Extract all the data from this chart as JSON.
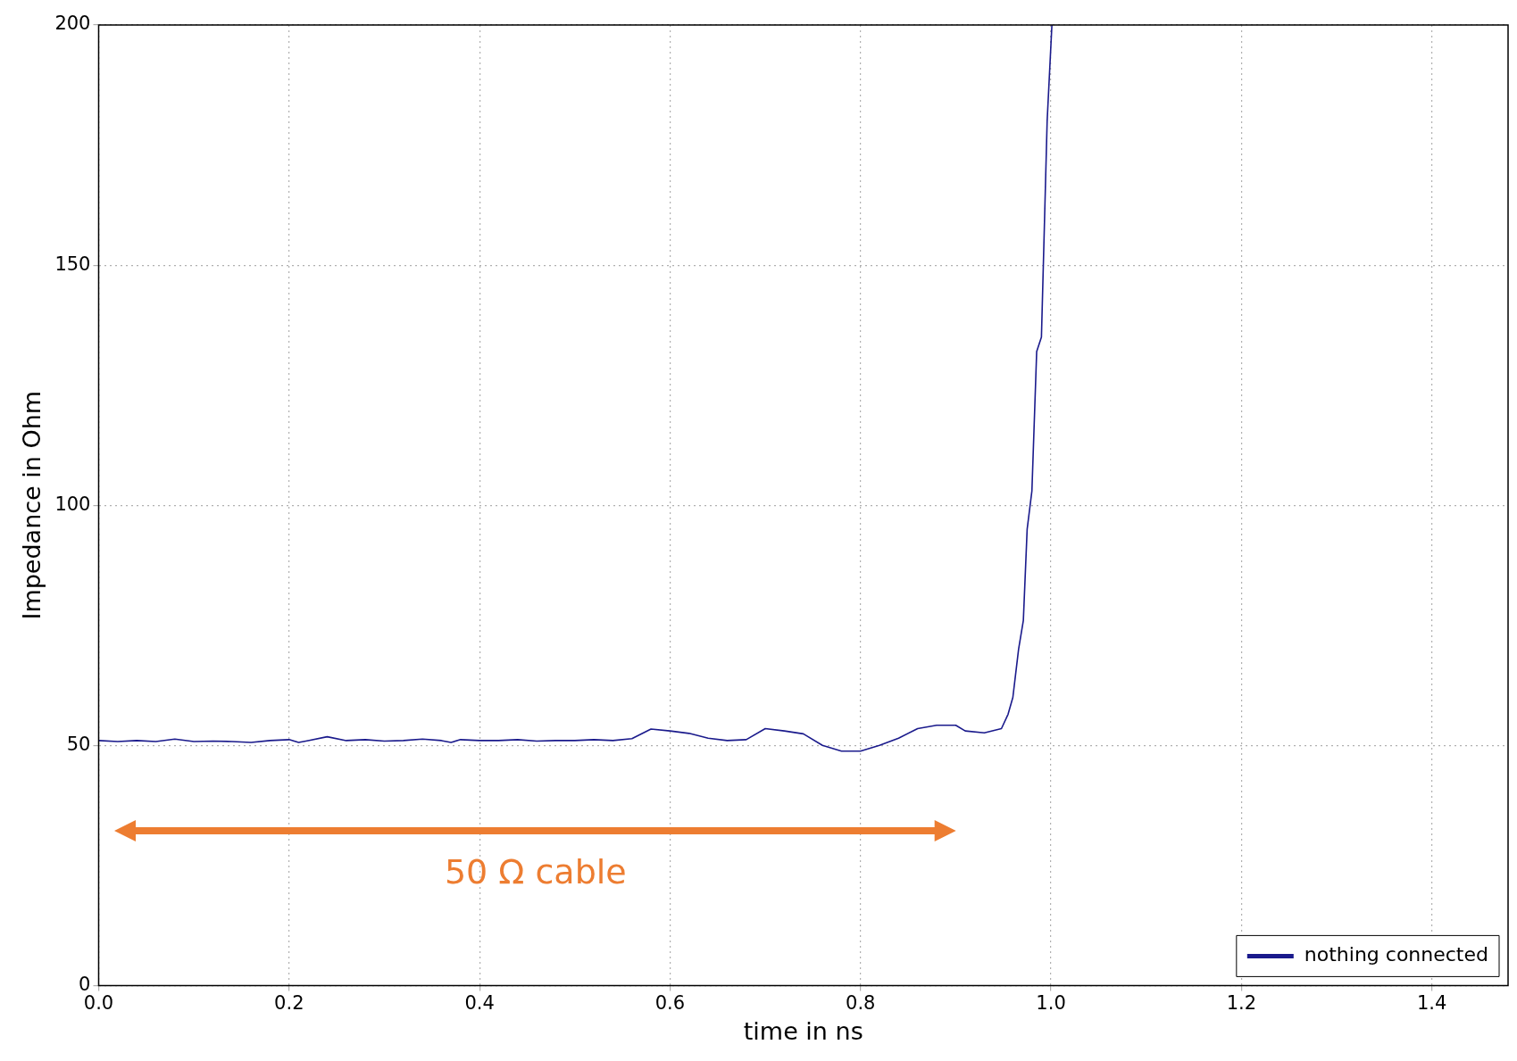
{
  "chart_data": {
    "type": "line",
    "xlabel": "time in ns",
    "ylabel": "Impedance in Ohm",
    "xlim": [
      0,
      1.48
    ],
    "ylim": [
      0,
      200
    ],
    "xticks": [
      {
        "value": 0,
        "label": "0.0"
      },
      0.2,
      0.4,
      0.6,
      0.8,
      {
        "value": 1,
        "label": "1.0"
      },
      1.2,
      1.4
    ],
    "yticks": [
      0,
      50,
      100,
      150,
      200
    ],
    "grid": true,
    "legend": "bottom right",
    "marker": "none",
    "line_style": "solid",
    "annotations": [
      "50 Ω cable"
    ],
    "series": [
      {
        "name": "nothing connected",
        "color": "#1a1a8c",
        "x": [
          0,
          0.02,
          0.04,
          0.06,
          0.08,
          0.1,
          0.12,
          0.14,
          0.16,
          0.18,
          0.2,
          0.21,
          0.22,
          0.24,
          0.26,
          0.28,
          0.3,
          0.32,
          0.34,
          0.36,
          0.37,
          0.38,
          0.4,
          0.42,
          0.44,
          0.46,
          0.48,
          0.5,
          0.52,
          0.54,
          0.56,
          0.58,
          0.6,
          0.62,
          0.64,
          0.66,
          0.68,
          0.7,
          0.72,
          0.74,
          0.76,
          0.78,
          0.8,
          0.82,
          0.84,
          0.86,
          0.88,
          0.9,
          0.91,
          0.93,
          0.948,
          0.955,
          0.96,
          0.966,
          0.971,
          0.975,
          0.98,
          0.985,
          0.99,
          0.996,
          1.001
        ],
        "values": [
          51,
          50.8,
          51,
          50.8,
          51.3,
          50.8,
          50.9,
          50.8,
          50.6,
          51,
          51.2,
          50.6,
          51,
          51.8,
          51,
          51.2,
          50.9,
          51,
          51.3,
          51,
          50.6,
          51.2,
          51,
          51,
          51.2,
          50.9,
          51,
          51,
          51.2,
          51,
          51.4,
          53.4,
          53,
          52.5,
          51.5,
          51,
          51.2,
          53.5,
          53,
          52.4,
          50,
          48.8,
          48.8,
          50,
          51.5,
          53.5,
          54.2,
          54.2,
          53,
          52.6,
          53.5,
          56.5,
          60,
          70,
          76,
          95,
          103,
          132,
          135,
          180,
          200
        ]
      }
    ]
  }
}
